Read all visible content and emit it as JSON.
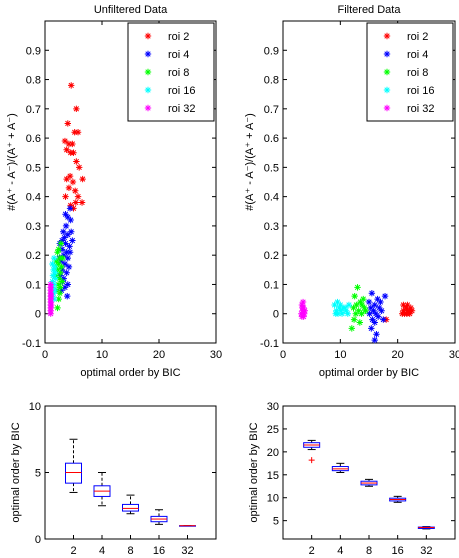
{
  "chart_data": [
    {
      "type": "scatter",
      "title": "Unfiltered Data",
      "xlabel": "optimal order by BIC",
      "ylabel": "#(A⁺ - A⁻)/(A⁺ + A⁻)",
      "xlim": [
        0,
        30
      ],
      "ylim": [
        -0.1,
        1.0
      ],
      "xticks": [
        "0",
        "10",
        "20",
        "30"
      ],
      "yticks": [
        "-0.1",
        "0",
        "0.1",
        "0.2",
        "0.3",
        "0.4",
        "0.5",
        "0.6",
        "0.7",
        "0.8",
        "0.9"
      ],
      "marker": "*",
      "legend_position": "top-right",
      "series": [
        {
          "name": "roi 2",
          "color": "#ff0000",
          "points": [
            [
              4.6,
              0.78
            ],
            [
              5.5,
              0.7
            ],
            [
              4.0,
              0.65
            ],
            [
              5.2,
              0.62
            ],
            [
              5.8,
              0.62
            ],
            [
              3.5,
              0.59
            ],
            [
              4.2,
              0.58
            ],
            [
              4.8,
              0.58
            ],
            [
              3.8,
              0.56
            ],
            [
              4.5,
              0.55
            ],
            [
              5.0,
              0.55
            ],
            [
              5.5,
              0.52
            ],
            [
              6.0,
              0.5
            ],
            [
              4.4,
              0.47
            ],
            [
              3.8,
              0.46
            ],
            [
              6.6,
              0.46
            ],
            [
              4.9,
              0.45
            ],
            [
              4.2,
              0.43
            ],
            [
              5.3,
              0.42
            ],
            [
              3.6,
              0.4
            ],
            [
              5.8,
              0.4
            ],
            [
              6.5,
              0.38
            ],
            [
              4.5,
              0.37
            ],
            [
              5.0,
              0.36
            ],
            [
              5.4,
              0.38
            ]
          ]
        },
        {
          "name": "roi 4",
          "color": "#0000ff",
          "points": [
            [
              4.4,
              0.36
            ],
            [
              4.0,
              0.33
            ],
            [
              4.5,
              0.32
            ],
            [
              3.7,
              0.3
            ],
            [
              3.2,
              0.28
            ],
            [
              4.0,
              0.27
            ],
            [
              3.4,
              0.26
            ],
            [
              3.0,
              0.25
            ],
            [
              2.6,
              0.24
            ],
            [
              3.6,
              0.24
            ],
            [
              4.3,
              0.23
            ],
            [
              3.0,
              0.22
            ],
            [
              3.8,
              0.21
            ],
            [
              3.3,
              0.2
            ],
            [
              4.0,
              0.19
            ],
            [
              2.8,
              0.18
            ],
            [
              3.5,
              0.17
            ],
            [
              4.2,
              0.16
            ],
            [
              3.0,
              0.15
            ],
            [
              3.8,
              0.14
            ],
            [
              2.7,
              0.13
            ],
            [
              3.3,
              0.12
            ],
            [
              4.0,
              0.1
            ],
            [
              3.5,
              0.09
            ],
            [
              2.9,
              0.08
            ],
            [
              3.9,
              0.06
            ],
            [
              4.4,
              0.21
            ],
            [
              2.5,
              0.19
            ],
            [
              4.8,
              0.25
            ],
            [
              3.6,
              0.34
            ],
            [
              4.6,
              0.28
            ],
            [
              3.1,
              0.11
            ]
          ]
        },
        {
          "name": "roi 8",
          "color": "#00ff00",
          "points": [
            [
              2.8,
              0.24
            ],
            [
              2.4,
              0.22
            ],
            [
              2.2,
              0.21
            ],
            [
              2.6,
              0.19
            ],
            [
              2.0,
              0.18
            ],
            [
              2.4,
              0.17
            ],
            [
              2.9,
              0.16
            ],
            [
              2.2,
              0.15
            ],
            [
              2.7,
              0.14
            ],
            [
              1.9,
              0.13
            ],
            [
              2.5,
              0.12
            ],
            [
              3.0,
              0.11
            ],
            [
              2.3,
              0.1
            ],
            [
              2.7,
              0.09
            ],
            [
              2.1,
              0.08
            ],
            [
              2.6,
              0.07
            ],
            [
              2.4,
              0.05
            ],
            [
              2.2,
              0.02
            ],
            [
              1.8,
              0.16
            ],
            [
              3.1,
              0.19
            ]
          ]
        },
        {
          "name": "roi 16",
          "color": "#00ffff",
          "points": [
            [
              1.6,
              0.19
            ],
            [
              1.3,
              0.17
            ],
            [
              1.7,
              0.16
            ],
            [
              1.5,
              0.15
            ],
            [
              1.4,
              0.13
            ],
            [
              1.8,
              0.12
            ],
            [
              1.3,
              0.11
            ],
            [
              1.6,
              0.1
            ],
            [
              1.4,
              0.09
            ],
            [
              1.7,
              0.08
            ],
            [
              1.5,
              0.07
            ],
            [
              1.3,
              0.06
            ],
            [
              1.6,
              0.05
            ],
            [
              1.8,
              0.14
            ]
          ]
        },
        {
          "name": "roi 32",
          "color": "#ff00ff",
          "points": [
            [
              1.0,
              0.1
            ],
            [
              1.0,
              0.09
            ],
            [
              1.0,
              0.08
            ],
            [
              1.0,
              0.07
            ],
            [
              1.0,
              0.06
            ],
            [
              1.0,
              0.05
            ],
            [
              1.0,
              0.04
            ],
            [
              1.0,
              0.03
            ],
            [
              1.0,
              0.02
            ],
            [
              1.0,
              0.01
            ],
            [
              1.0,
              0.0
            ],
            [
              1.1,
              0.06
            ],
            [
              1.1,
              0.03
            ]
          ]
        }
      ]
    },
    {
      "type": "scatter",
      "title": "Filtered Data",
      "xlabel": "optimal order by BIC",
      "ylabel": "#(A⁺ - A⁻)/(A⁺ + A⁻)",
      "xlim": [
        0,
        30
      ],
      "ylim": [
        -0.1,
        1.0
      ],
      "xticks": [
        "0",
        "10",
        "20",
        "30"
      ],
      "yticks": [
        "-0.1",
        "0",
        "0.1",
        "0.2",
        "0.3",
        "0.4",
        "0.5",
        "0.6",
        "0.7",
        "0.8",
        "0.9"
      ],
      "marker": "*",
      "legend_position": "top-right",
      "series": [
        {
          "name": "roi 2",
          "color": "#ff0000",
          "points": [
            [
              21.0,
              0.03
            ],
            [
              21.5,
              0.02
            ],
            [
              22.0,
              0.01
            ],
            [
              21.2,
              0.0
            ],
            [
              21.8,
              0.01
            ],
            [
              22.3,
              0.02
            ],
            [
              21.0,
              0.01
            ],
            [
              21.6,
              0.0
            ],
            [
              22.1,
              0.0
            ],
            [
              21.4,
              0.02
            ],
            [
              20.8,
              0.0
            ],
            [
              22.5,
              0.01
            ],
            [
              21.7,
              0.03
            ],
            [
              18.0,
              -0.02
            ]
          ]
        },
        {
          "name": "roi 4",
          "color": "#0000ff",
          "points": [
            [
              15.5,
              0.07
            ],
            [
              16.5,
              0.05
            ],
            [
              15.0,
              0.04
            ],
            [
              17.0,
              0.04
            ],
            [
              16.0,
              0.03
            ],
            [
              15.3,
              0.02
            ],
            [
              16.8,
              0.02
            ],
            [
              15.8,
              0.01
            ],
            [
              17.2,
              0.01
            ],
            [
              16.2,
              0.0
            ],
            [
              15.1,
              0.0
            ],
            [
              16.6,
              -0.01
            ],
            [
              15.6,
              -0.02
            ],
            [
              17.5,
              -0.02
            ],
            [
              16.0,
              -0.03
            ],
            [
              15.4,
              -0.05
            ],
            [
              16.3,
              -0.07
            ],
            [
              16.0,
              -0.09
            ],
            [
              17.8,
              0.06
            ]
          ]
        },
        {
          "name": "roi 8",
          "color": "#00ff00",
          "points": [
            [
              13.0,
              0.09
            ],
            [
              12.5,
              0.06
            ],
            [
              14.0,
              0.05
            ],
            [
              13.5,
              0.04
            ],
            [
              12.8,
              0.03
            ],
            [
              13.8,
              0.03
            ],
            [
              12.3,
              0.02
            ],
            [
              14.2,
              0.02
            ],
            [
              13.2,
              0.01
            ],
            [
              12.7,
              0.0
            ],
            [
              13.7,
              0.0
            ],
            [
              12.4,
              -0.02
            ],
            [
              13.4,
              -0.03
            ],
            [
              12.0,
              -0.05
            ],
            [
              14.4,
              0.01
            ]
          ]
        },
        {
          "name": "roi 16",
          "color": "#00ffff",
          "points": [
            [
              9.5,
              0.04
            ],
            [
              10.0,
              0.03
            ],
            [
              9.0,
              0.03
            ],
            [
              10.5,
              0.02
            ],
            [
              9.8,
              0.02
            ],
            [
              11.0,
              0.01
            ],
            [
              9.3,
              0.01
            ],
            [
              10.3,
              0.0
            ],
            [
              11.3,
              0.0
            ],
            [
              9.6,
              0.0
            ],
            [
              10.8,
              0.02
            ],
            [
              11.5,
              0.03
            ],
            [
              9.2,
              0.0
            ],
            [
              10.1,
              0.01
            ]
          ]
        },
        {
          "name": "roi 32",
          "color": "#ff00ff",
          "points": [
            [
              3.3,
              0.03
            ],
            [
              3.6,
              0.02
            ],
            [
              3.4,
              0.01
            ],
            [
              3.7,
              0.0
            ],
            [
              3.5,
              0.04
            ],
            [
              3.2,
              0.0
            ],
            [
              3.6,
              -0.01
            ],
            [
              3.4,
              0.02
            ],
            [
              3.8,
              0.01
            ],
            [
              3.3,
              -0.01
            ]
          ]
        }
      ]
    },
    {
      "type": "box",
      "ylabel": "optimal order by BIC",
      "ylim": [
        0,
        10
      ],
      "yticks": [
        "0",
        "5",
        "10"
      ],
      "categories": [
        "2",
        "4",
        "8",
        "16",
        "32"
      ],
      "boxes": [
        {
          "whisker_low": 3.5,
          "q1": 4.2,
          "median": 5.0,
          "q3": 5.7,
          "whisker_high": 7.5,
          "outliers": []
        },
        {
          "whisker_low": 2.5,
          "q1": 3.2,
          "median": 3.6,
          "q3": 4.0,
          "whisker_high": 5.0,
          "outliers": []
        },
        {
          "whisker_low": 1.9,
          "q1": 2.1,
          "median": 2.3,
          "q3": 2.6,
          "whisker_high": 3.3,
          "outliers": []
        },
        {
          "whisker_low": 1.1,
          "q1": 1.3,
          "median": 1.5,
          "q3": 1.7,
          "whisker_high": 2.2,
          "outliers": []
        },
        {
          "whisker_low": 1.0,
          "q1": 1.0,
          "median": 1.0,
          "q3": 1.0,
          "whisker_high": 1.0,
          "outliers": []
        }
      ]
    },
    {
      "type": "box",
      "ylabel": "optimal order by BIC",
      "ylim": [
        1,
        30
      ],
      "yticks": [
        "5",
        "10",
        "15",
        "20",
        "25",
        "30"
      ],
      "categories": [
        "2",
        "4",
        "8",
        "16",
        "32"
      ],
      "boxes": [
        {
          "whisker_low": 20.5,
          "q1": 21.0,
          "median": 21.5,
          "q3": 22.0,
          "whisker_high": 22.5,
          "outliers": [
            18.2
          ]
        },
        {
          "whisker_low": 15.5,
          "q1": 15.9,
          "median": 16.3,
          "q3": 16.8,
          "whisker_high": 17.5,
          "outliers": []
        },
        {
          "whisker_low": 12.5,
          "q1": 12.8,
          "median": 13.2,
          "q3": 13.6,
          "whisker_high": 14.0,
          "outliers": []
        },
        {
          "whisker_low": 9.0,
          "q1": 9.3,
          "median": 9.6,
          "q3": 9.9,
          "whisker_high": 10.3,
          "outliers": []
        },
        {
          "whisker_low": 3.2,
          "q1": 3.3,
          "median": 3.5,
          "q3": 3.6,
          "whisker_high": 3.7,
          "outliers": []
        }
      ]
    }
  ]
}
